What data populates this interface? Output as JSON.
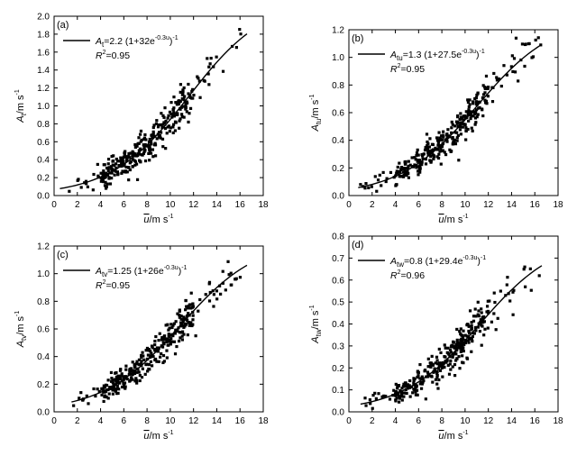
{
  "chart_data": [
    {
      "type": "scatter",
      "panel_label": "(a)",
      "ylabel_main": "A",
      "ylabel_sub": "t",
      "ylabel_unit": "/m s",
      "ylabel_unit_sup": "-1",
      "xlabel_main": "u",
      "xlabel_unit": "/m s",
      "xlabel_unit_sup": "-1",
      "xlim": [
        0,
        18
      ],
      "ylim": [
        0,
        2.0
      ],
      "xticks": [
        0,
        2,
        4,
        6,
        8,
        10,
        12,
        14,
        16,
        18
      ],
      "xtick_labels": [
        "0",
        "2",
        "4",
        "6",
        "8",
        "10",
        "12",
        "14",
        "16",
        "18"
      ],
      "yticks": [
        0.0,
        0.2,
        0.4,
        0.6,
        0.8,
        1.0,
        1.2,
        1.4,
        1.6,
        1.8,
        2.0
      ],
      "ytick_labels": [
        "0.0",
        "0.2",
        "0.4",
        "0.6",
        "0.8",
        "1.0",
        "1.2",
        "1.4",
        "1.6",
        "1.8",
        "2.0"
      ],
      "legend": {
        "sym": "A",
        "sub": "t",
        "eq": "=2.2 (1+32e",
        "exp": "-0.3u",
        "close": ")",
        "close_sup": "-1",
        "r2_label": "R",
        "r2_sup": "2",
        "r2_val": "=0.95"
      },
      "fit": {
        "a": 2.2,
        "b": 32,
        "c": 0.3,
        "x_range": [
          0.5,
          16.6
        ]
      },
      "data_range": {
        "x": [
          0.8,
          16.6
        ],
        "scatter": 0.09,
        "count": 320
      }
    },
    {
      "type": "scatter",
      "panel_label": "(b)",
      "ylabel_main": "A",
      "ylabel_sub": "tu",
      "ylabel_unit": "/m s",
      "ylabel_unit_sup": "-1",
      "xlabel_main": "u",
      "xlabel_unit": "/m s",
      "xlabel_unit_sup": "-1",
      "xlim": [
        0,
        18
      ],
      "ylim": [
        0,
        1.2
      ],
      "xticks": [
        0,
        2,
        4,
        6,
        8,
        10,
        12,
        14,
        16,
        18
      ],
      "xtick_labels": [
        "0",
        "2",
        "4",
        "6",
        "8",
        "10",
        "12",
        "14",
        "16",
        "18"
      ],
      "yticks": [
        0.0,
        0.2,
        0.4,
        0.6,
        0.8,
        1.0,
        1.2
      ],
      "ytick_labels": [
        "0.0",
        "0.2",
        "0.4",
        "0.6",
        "0.8",
        "1.0",
        "1.2"
      ],
      "legend": {
        "sym": "A",
        "sub": "tu",
        "eq": "=1.3 (1+27.5e",
        "exp": "-0.3u",
        "close": ")",
        "close_sup": "-1",
        "r2_label": "R",
        "r2_sup": "2",
        "r2_val": "=0.95"
      },
      "fit": {
        "a": 1.3,
        "b": 27.5,
        "c": 0.3,
        "x_range": [
          0.8,
          16.6
        ]
      },
      "data_range": {
        "x": [
          0.8,
          16.6
        ],
        "scatter": 0.055,
        "count": 320
      }
    },
    {
      "type": "scatter",
      "panel_label": "(c)",
      "ylabel_main": "A",
      "ylabel_sub": "tv",
      "ylabel_unit": "/m s",
      "ylabel_unit_sup": "-1",
      "xlabel_main": "u",
      "xlabel_unit": "/m s",
      "xlabel_unit_sup": "-1",
      "xlim": [
        0,
        18
      ],
      "ylim": [
        0,
        1.2
      ],
      "xticks": [
        0,
        2,
        4,
        6,
        8,
        10,
        12,
        14,
        16,
        18
      ],
      "xtick_labels": [
        "0",
        "2",
        "4",
        "6",
        "8",
        "10",
        "12",
        "14",
        "16",
        "18"
      ],
      "yticks": [
        0.0,
        0.2,
        0.4,
        0.6,
        0.8,
        1.0,
        1.2
      ],
      "ytick_labels": [
        "0.0",
        "0.2",
        "0.4",
        "0.6",
        "0.8",
        "1.0",
        "1.2"
      ],
      "legend": {
        "sym": "A",
        "sub": "tv",
        "eq": "=1.25 (1+26e",
        "exp": "-0.3u",
        "close": ")",
        "close_sup": "-1",
        "r2_label": "R",
        "r2_sup": "2",
        "r2_val": "=0.95"
      },
      "fit": {
        "a": 1.25,
        "b": 26,
        "c": 0.3,
        "x_range": [
          1.5,
          16.6
        ]
      },
      "data_range": {
        "x": [
          1.6,
          16.6
        ],
        "scatter": 0.055,
        "count": 320
      }
    },
    {
      "type": "scatter",
      "panel_label": "(d)",
      "ylabel_main": "A",
      "ylabel_sub": "tw",
      "ylabel_unit": "/m s",
      "ylabel_unit_sup": "-1",
      "xlabel_main": "u",
      "xlabel_unit": "/m s",
      "xlabel_unit_sup": "-1",
      "xlim": [
        0,
        18
      ],
      "ylim": [
        0,
        0.8
      ],
      "xticks": [
        0,
        2,
        4,
        6,
        8,
        10,
        12,
        14,
        16,
        18
      ],
      "xtick_labels": [
        "0",
        "2",
        "4",
        "6",
        "8",
        "10",
        "12",
        "14",
        "16",
        "18"
      ],
      "yticks": [
        0.0,
        0.1,
        0.2,
        0.3,
        0.4,
        0.5,
        0.6,
        0.7,
        0.8
      ],
      "ytick_labels": [
        "0.0",
        "0.1",
        "0.2",
        "0.3",
        "0.4",
        "0.5",
        "0.6",
        "0.7",
        "0.8"
      ],
      "legend": {
        "sym": "A",
        "sub": "tw",
        "eq": "=0.8 (1+29.4e",
        "exp": "-0.3u",
        "close": ")",
        "close_sup": "-1",
        "r2_label": "R",
        "r2_sup": "2",
        "r2_val": "=0.96"
      },
      "fit": {
        "a": 0.8,
        "b": 29.4,
        "c": 0.3,
        "x_range": [
          1.0,
          16.6
        ]
      },
      "data_range": {
        "x": [
          1.0,
          16.6
        ],
        "scatter": 0.035,
        "count": 320
      }
    }
  ]
}
